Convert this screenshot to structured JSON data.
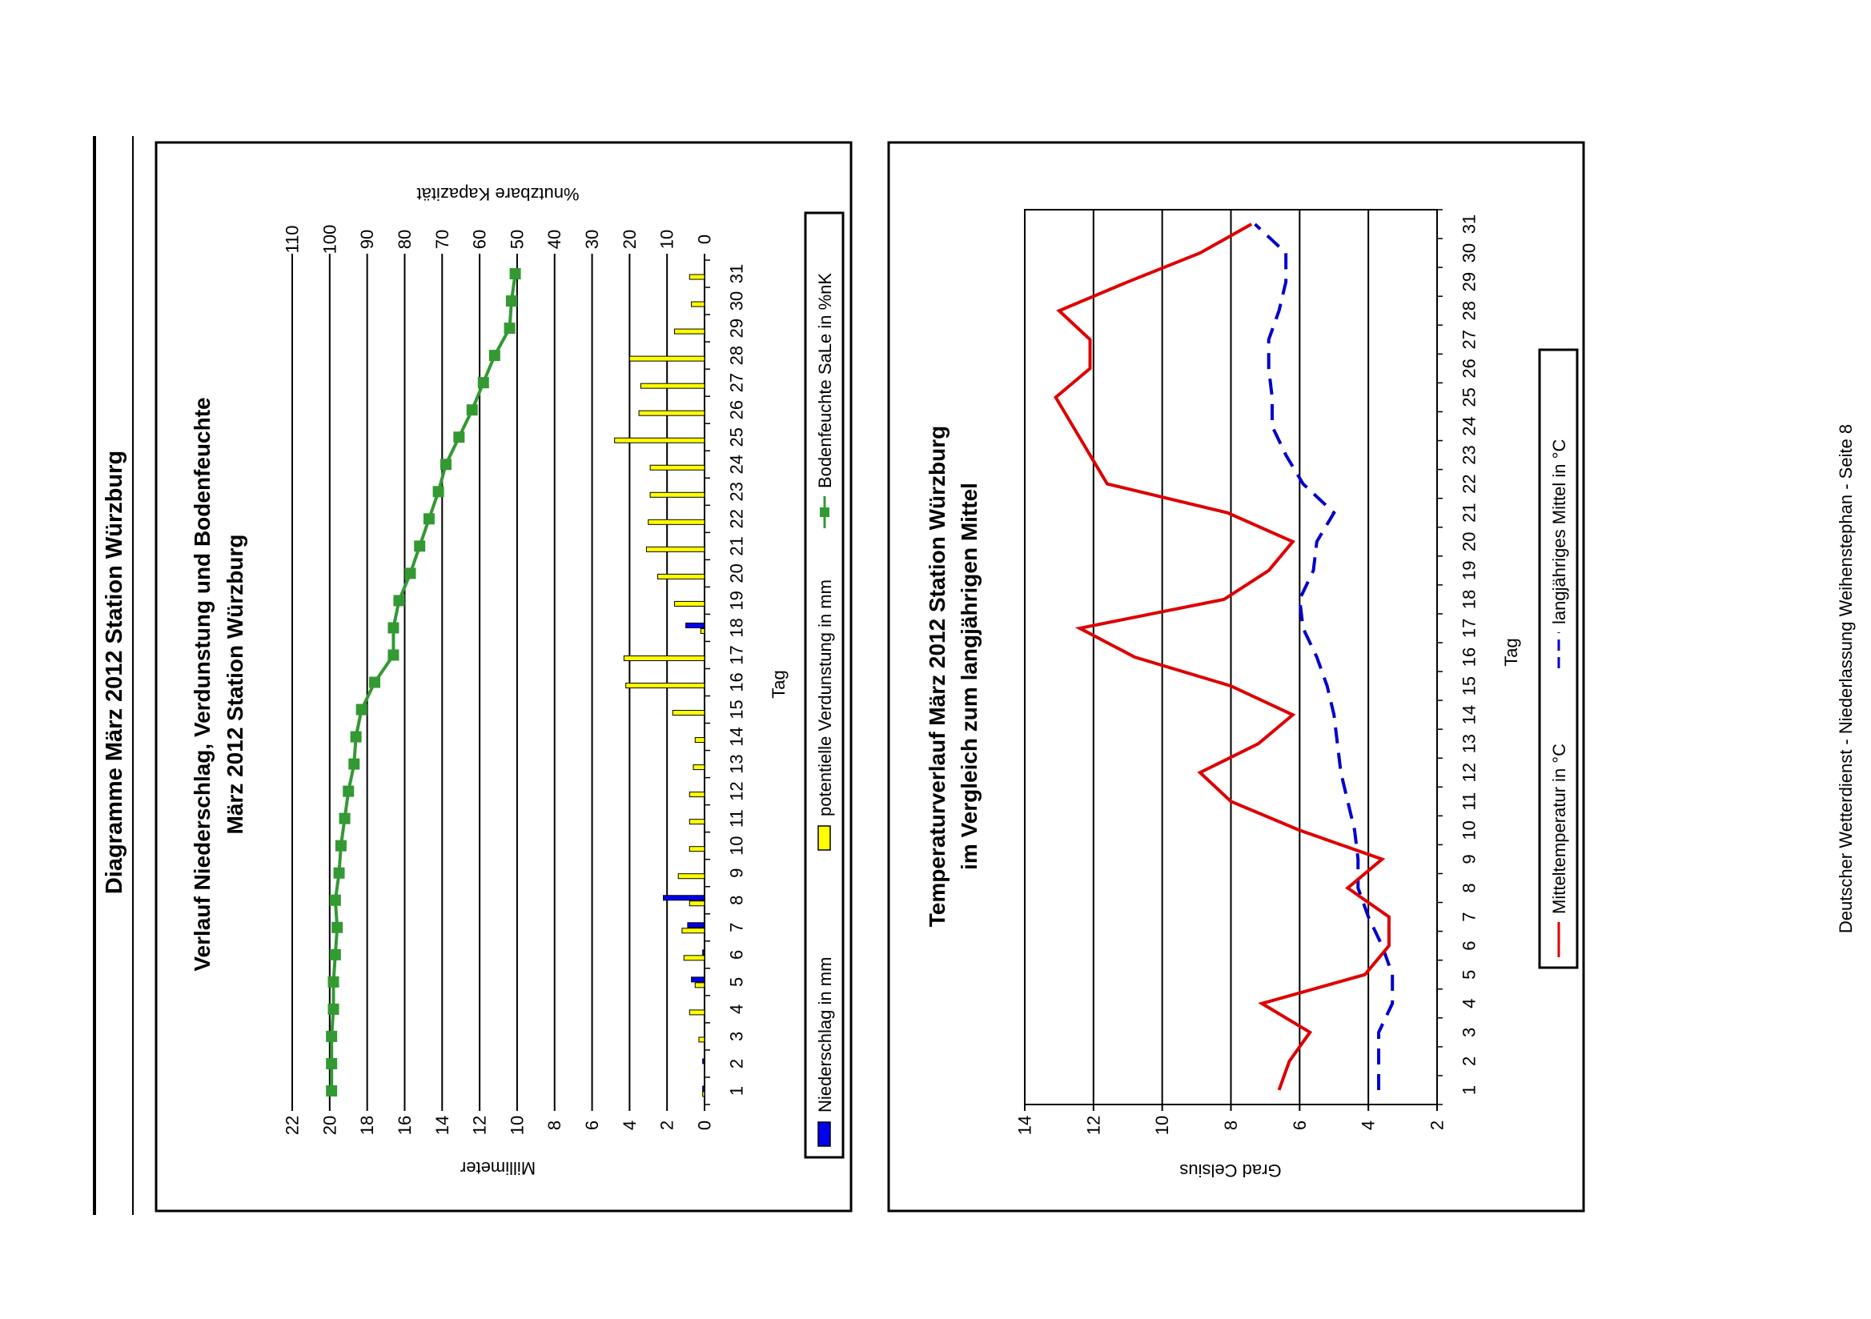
{
  "page_title": "Diagramme März 2012 Station Würzburg",
  "footer": "Deutscher Wetterdienst - Niederlassung Weihenstephan - Seite 8",
  "colors": {
    "precip": "#0000ee",
    "evap": "#ffff00",
    "soil": "#339933",
    "mean_temp": "#dd0000",
    "longterm": "#0000cc"
  },
  "chart_data": [
    {
      "type": "bar",
      "title": "Verlauf Niederschlag, Verdunstung und Bodenfeuchte",
      "subtitle": "März 2012 Station Würzburg",
      "xlabel": "Tag",
      "ylabel": "Millimeter",
      "ylabel_right": "%nutzbare Kapazität",
      "ylim": [
        0,
        22
      ],
      "ylim_right": [
        0,
        110
      ],
      "grid": true,
      "legend_position": "bottom",
      "categories": [
        "1",
        "2",
        "3",
        "4",
        "5",
        "6",
        "7",
        "8",
        "9",
        "10",
        "11",
        "12",
        "13",
        "14",
        "15",
        "16",
        "17",
        "18",
        "19",
        "20",
        "21",
        "22",
        "23",
        "24",
        "25",
        "26",
        "27",
        "28",
        "29",
        "30",
        "31"
      ],
      "series": [
        {
          "name": "Niederschlag in mm",
          "type": "bar",
          "values": [
            0.1,
            0.1,
            0.0,
            0.0,
            0.7,
            0.1,
            0.9,
            2.2,
            0.0,
            0.0,
            0.0,
            0.0,
            0.0,
            0.0,
            0.0,
            0.0,
            0.0,
            1.0,
            0.0,
            0.0,
            0.0,
            0.0,
            0.0,
            0.0,
            0.0,
            0.0,
            0.0,
            0.0,
            0.0,
            0.0,
            0.0
          ]
        },
        {
          "name": "potentielle Verdunstung in mm",
          "type": "bar",
          "values": [
            0.1,
            0.0,
            0.3,
            0.8,
            0.5,
            1.1,
            1.2,
            0.8,
            1.4,
            0.8,
            0.8,
            0.8,
            0.6,
            0.5,
            1.7,
            4.2,
            4.3,
            0.2,
            1.6,
            2.5,
            3.1,
            3.0,
            2.9,
            2.9,
            4.8,
            3.5,
            3.4,
            4.0,
            1.6,
            0.7,
            0.8
          ]
        },
        {
          "name": "Bodenfeuchte SaLe in %nK",
          "type": "line",
          "axis": "right",
          "values": [
            99.5,
            99.5,
            99.5,
            99.0,
            99.0,
            98.5,
            98.0,
            98.5,
            97.5,
            97.0,
            96.0,
            95.0,
            93.5,
            93.0,
            91.5,
            88.0,
            83.0,
            83.0,
            81.5,
            78.5,
            76.0,
            73.5,
            71.0,
            69.0,
            65.5,
            62.0,
            59.0,
            56.0,
            52.0,
            51.5,
            50.5
          ]
        }
      ]
    },
    {
      "type": "line",
      "title": "Temperaturverlauf März 2012 Station Würzburg",
      "subtitle": "im Vergleich zum langjährigen Mittel",
      "xlabel": "Tag",
      "ylabel": "Grad Celsius",
      "ylim": [
        2,
        14
      ],
      "grid": true,
      "legend_position": "bottom",
      "categories": [
        "1",
        "2",
        "3",
        "4",
        "5",
        "6",
        "7",
        "8",
        "9",
        "10",
        "11",
        "12",
        "13",
        "14",
        "15",
        "16",
        "17",
        "18",
        "19",
        "20",
        "21",
        "22",
        "23",
        "24",
        "25",
        "26",
        "27",
        "28",
        "29",
        "30",
        "31"
      ],
      "series": [
        {
          "name": "Mitteltemperatur in °C",
          "style": "solid",
          "values": [
            6.6,
            6.3,
            5.7,
            7.1,
            4.1,
            3.4,
            3.4,
            4.6,
            3.6,
            6.0,
            8.0,
            8.9,
            7.2,
            6.2,
            8.0,
            10.8,
            12.4,
            8.2,
            6.9,
            6.2,
            8.1,
            11.6,
            12.1,
            12.6,
            13.1,
            12.1,
            12.1,
            13.0,
            11.0,
            8.9,
            7.4
          ]
        },
        {
          "name": "langjähriges Mittel in °C",
          "style": "dashed",
          "values": [
            3.7,
            3.7,
            3.7,
            3.3,
            3.3,
            3.6,
            4.0,
            4.3,
            4.3,
            4.4,
            4.6,
            4.8,
            4.9,
            5.0,
            5.2,
            5.5,
            5.9,
            6.0,
            5.6,
            5.5,
            5.0,
            5.9,
            6.4,
            6.8,
            6.8,
            6.9,
            6.9,
            6.6,
            6.4,
            6.4,
            7.3
          ]
        }
      ]
    }
  ]
}
